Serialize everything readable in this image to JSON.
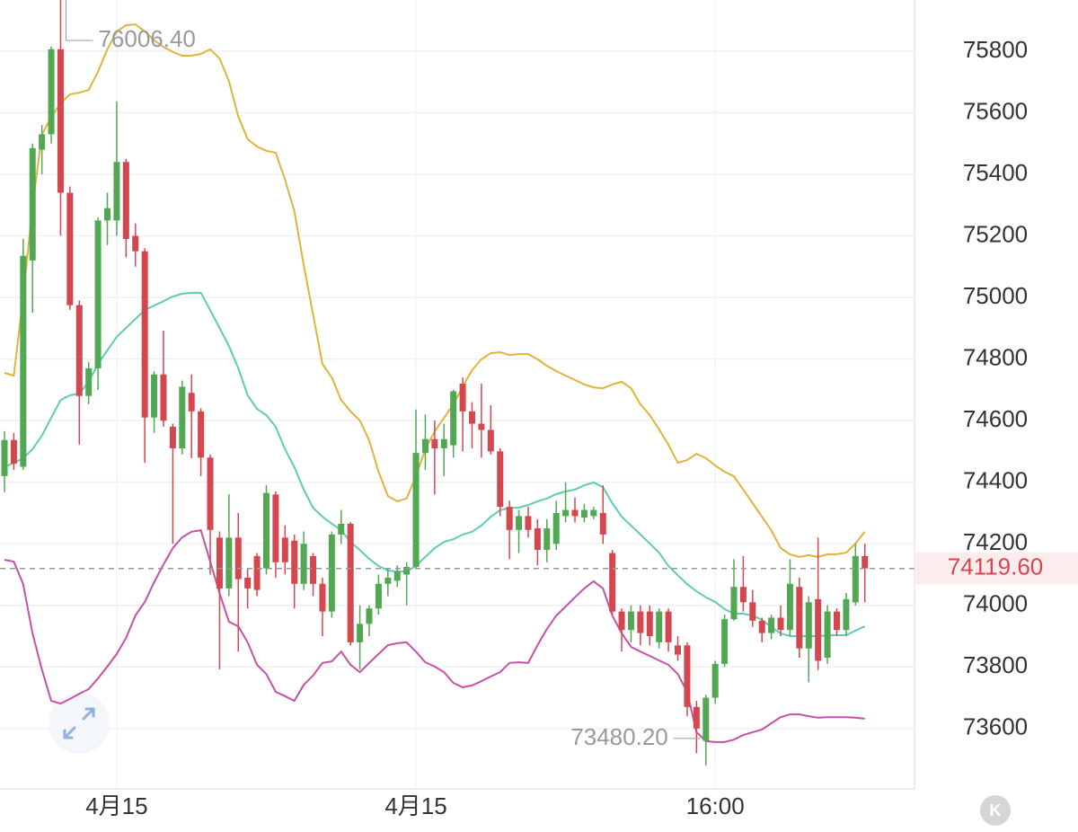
{
  "chart_data": {
    "type": "candlestick",
    "categories": [
      null,
      null,
      null,
      null,
      null,
      null,
      null,
      null,
      null,
      null,
      null,
      null,
      "4月15",
      null,
      null,
      null,
      null,
      null,
      null,
      null,
      null,
      null,
      null,
      null,
      null,
      null,
      null,
      null,
      null,
      null,
      null,
      null,
      null,
      null,
      null,
      null,
      null,
      null,
      null,
      null,
      null,
      null,
      null,
      null,
      "4月15",
      null,
      null,
      null,
      null,
      null,
      null,
      null,
      null,
      null,
      null,
      null,
      null,
      null,
      null,
      null,
      null,
      null,
      null,
      null,
      null,
      null,
      null,
      null,
      null,
      null,
      null,
      null,
      null,
      null,
      null,
      null,
      "16:00",
      null,
      null,
      null,
      null,
      null,
      null,
      null,
      null,
      null,
      null,
      null,
      null,
      null,
      null,
      null,
      null
    ],
    "open": [
      74420,
      74537,
      74450,
      75120,
      75480,
      75530,
      75806,
      75340,
      74975,
      74680,
      74770,
      75250,
      75250,
      75440,
      75200,
      75150,
      74610,
      74750,
      74580,
      74510,
      74690,
      74630,
      74480,
      74220,
      74055,
      74220,
      74090,
      74160,
      74120,
      74360,
      74220,
      74210,
      74070,
      74160,
      74070,
      73980,
      74230,
      74265,
      73880,
      73940,
      73990,
      74070,
      74080,
      74100,
      74125,
      74495,
      74540,
      74510,
      74520,
      74720,
      74630,
      74590,
      74570,
      74500,
      74320,
      74245,
      74290,
      74250,
      74180,
      74200,
      74290,
      74310,
      74285,
      74290,
      74300,
      74170,
      73980,
      73920,
      73980,
      73980,
      73880,
      73980,
      73870,
      73870,
      73670,
      73560,
      73700,
      73810,
      73955,
      74060,
      74010,
      73950,
      73910,
      73960,
      73920,
      74060,
      73860,
      74020,
      73830,
      73980,
      73920,
      74010,
      74160
    ],
    "high": [
      74566,
      74560,
      75190,
      75500,
      75560,
      75815,
      76006.4,
      75360,
      74990,
      74790,
      75260,
      75340,
      75637,
      75450,
      75240,
      75160,
      74760,
      74892,
      74590,
      74730,
      74750,
      74640,
      74490,
      74240,
      74361,
      74300,
      74120,
      74170,
      74390,
      74370,
      74260,
      74230,
      74240,
      74170,
      74090,
      74240,
      74310,
      74270,
      74000,
      74000,
      74100,
      74120,
      74130,
      74140,
      74636,
      74620,
      74600,
      74590,
      74700,
      74740,
      74660,
      74720,
      74650,
      74510,
      74340,
      74310,
      74320,
      74280,
      74280,
      74340,
      74400,
      74350,
      74330,
      74320,
      74390,
      74180,
      73990,
      74000,
      74000,
      74000,
      73990,
      73990,
      73900,
      73880,
      73690,
      73710,
      73820,
      73970,
      74150,
      74160,
      74050,
      73960,
      73970,
      74000,
      74150,
      74090,
      74030,
      74220,
      74000,
      73990,
      74040,
      74200,
      74200
    ],
    "low": [
      74368,
      74440,
      74440,
      74950,
      75400,
      75500,
      75200,
      74960,
      74522,
      74653,
      74700,
      75170,
      75200,
      75130,
      75100,
      74463,
      74560,
      74580,
      74200,
      74490,
      74478,
      74420,
      74100,
      73792,
      74030,
      73850,
      73990,
      74030,
      74100,
      74090,
      74100,
      73990,
      74050,
      74030,
      73900,
      73960,
      74200,
      73870,
      73792,
      73900,
      73970,
      74030,
      74060,
      74000,
      74120,
      74440,
      74360,
      74420,
      74480,
      74500,
      74510,
      74480,
      74490,
      74290,
      74150,
      74170,
      74220,
      74130,
      74140,
      74180,
      74270,
      74270,
      74270,
      74280,
      74200,
      73970,
      73850,
      73880,
      73870,
      73870,
      73860,
      73850,
      73820,
      73640,
      73520,
      73480.2,
      73680,
      73800,
      73950,
      73980,
      73930,
      73880,
      73890,
      73900,
      73900,
      73830,
      73750,
      73790,
      73810,
      73900,
      73900,
      74000,
      74010
    ],
    "close": [
      74537,
      74460,
      75135,
      75485,
      75530,
      75806,
      75340,
      74975,
      74680,
      74770,
      75250,
      75290,
      75440,
      75190,
      75150,
      74610,
      74750,
      74600,
      74510,
      74710,
      74630,
      74480,
      74245,
      74055,
      74220,
      74085,
      74055,
      74050,
      74365,
      74140,
      74140,
      74070,
      74200,
      74070,
      73980,
      74230,
      74265,
      73880,
      73940,
      73990,
      74070,
      74090,
      74110,
      74125,
      74495,
      74540,
      74510,
      74540,
      74695,
      74630,
      74590,
      74570,
      74500,
      74320,
      74245,
      74290,
      74245,
      74180,
      74250,
      74300,
      74310,
      74290,
      74310,
      74310,
      74230,
      73980,
      73920,
      73980,
      73910,
      73900,
      73980,
      73880,
      73840,
      73670,
      73600,
      73700,
      73810,
      73955,
      74060,
      74010,
      73950,
      73910,
      73960,
      73920,
      74070,
      73860,
      74010,
      73820,
      73980,
      73920,
      74020,
      74160,
      74119.6
    ],
    "up_color": "#52a852",
    "down_color": "#d4474f",
    "overlays": [
      {
        "color": "#e0b43a",
        "values": [
          74755,
          74746,
          75003,
          75295,
          75528,
          75587,
          75630,
          75660,
          75665,
          75674,
          75733,
          75806,
          75864,
          75884,
          75887,
          75864,
          75835,
          75814,
          75797,
          75785,
          75785,
          75791,
          75806,
          75776,
          75703,
          75587,
          75514,
          75490,
          75476,
          75470,
          75382,
          75280,
          75105,
          74945,
          74784,
          74740,
          74667,
          74630,
          74600,
          74536,
          74434,
          74355,
          74338,
          74347,
          74419,
          74507,
          74565,
          74609,
          74653,
          74711,
          74764,
          74799,
          74819,
          74822,
          74813,
          74816,
          74816,
          74799,
          74778,
          74761,
          74746,
          74732,
          74717,
          74708,
          74705,
          74717,
          74726,
          74705,
          74653,
          74618,
          74571,
          74522,
          74463,
          74472,
          74492,
          74478,
          74454,
          74434,
          74419,
          74376,
          74332,
          74288,
          74244,
          74186,
          74166,
          74157,
          74163,
          74157,
          74166,
          74166,
          74171,
          74201,
          74239
        ]
      },
      {
        "color": "#5ccdb3",
        "values": [
          74449,
          74463,
          74478,
          74507,
          74551,
          74609,
          74667,
          74682,
          74688,
          74726,
          74784,
          74828,
          74872,
          74901,
          74930,
          74959,
          74974,
          74988,
          75003,
          75012,
          75015,
          75015,
          74959,
          74901,
          74843,
          74770,
          74682,
          74638,
          74618,
          74580,
          74507,
          74449,
          74376,
          74317,
          74288,
          74265,
          74244,
          74206,
          74180,
          74151,
          74128,
          74113,
          74110,
          74110,
          74128,
          74157,
          74186,
          74206,
          74215,
          74230,
          74239,
          74259,
          74288,
          74309,
          74317,
          74317,
          74326,
          74338,
          74347,
          74361,
          74370,
          74376,
          74390,
          74399,
          74384,
          74332,
          74288,
          74259,
          74230,
          74201,
          74171,
          74128,
          74098,
          74069,
          74046,
          74026,
          74011,
          73988,
          73973,
          73973,
          73967,
          73953,
          73929,
          73909,
          73900,
          73900,
          73900,
          73900,
          73903,
          73903,
          73903,
          73918,
          73932
        ]
      },
      {
        "color": "#c84fa8",
        "values": [
          74148,
          74142,
          74069,
          73909,
          73792,
          73690,
          73681,
          73696,
          73713,
          73728,
          73763,
          73801,
          73842,
          73894,
          73967,
          74011,
          74075,
          74133,
          74186,
          74221,
          74239,
          74244,
          74142,
          74040,
          73947,
          73932,
          73880,
          73807,
          73777,
          73719,
          73705,
          73690,
          73742,
          73772,
          73813,
          73818,
          73850,
          73807,
          73783,
          73813,
          73842,
          73871,
          73877,
          73880,
          73850,
          73815,
          73801,
          73783,
          73748,
          73734,
          73740,
          73754,
          73769,
          73783,
          73813,
          73815,
          73813,
          73871,
          73923,
          73967,
          73996,
          74026,
          74055,
          74078,
          74055,
          73967,
          73909,
          73865,
          73850,
          73836,
          73821,
          73807,
          73777,
          73719,
          73588,
          73559,
          73556,
          73556,
          73564,
          73579,
          73588,
          73597,
          73617,
          73637,
          73646,
          73646,
          73640,
          73635,
          73637,
          73637,
          73637,
          73635,
          73632
        ]
      }
    ],
    "ylim": [
      73404,
      75966
    ],
    "yticks": [
      73600,
      73800,
      74000,
      74200,
      74400,
      74600,
      74800,
      75000,
      75200,
      75400,
      75600,
      75800
    ],
    "grid": true,
    "annotations": {
      "high_label": "76006.40",
      "low_label": "73480.20",
      "last_label": "74119.60"
    },
    "kline_button": "K"
  }
}
